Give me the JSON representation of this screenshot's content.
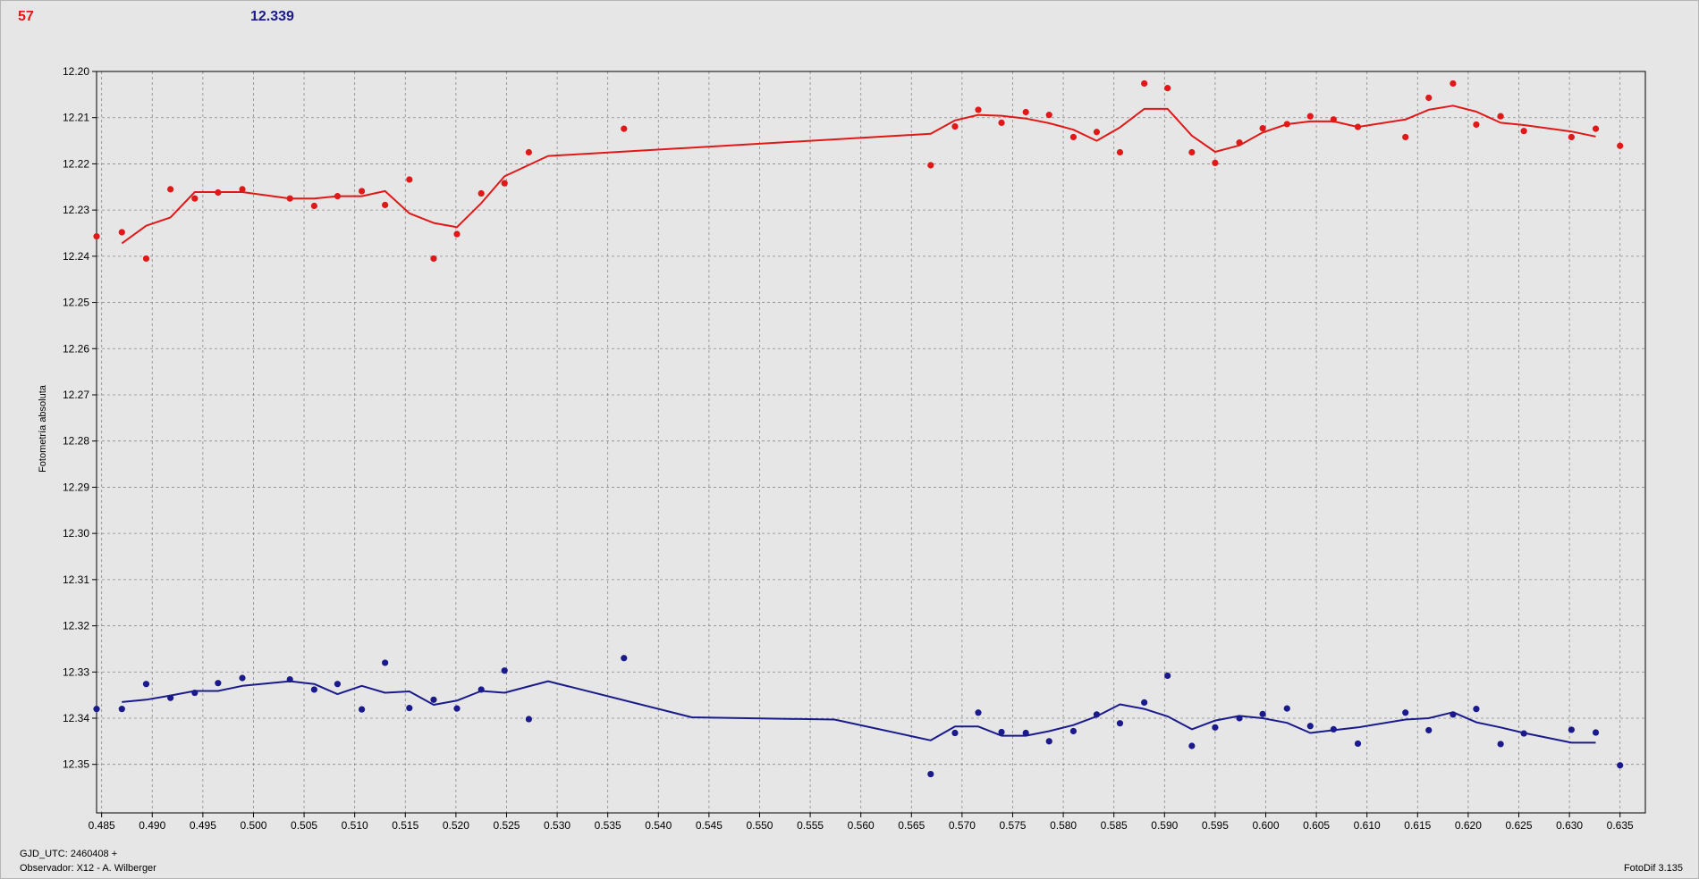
{
  "header": {
    "count": "57",
    "mean": "12.339"
  },
  "footer": {
    "gjd": "GJD_UTC: 2460408 +",
    "observer": "Observador: X12 - A. Wilberger",
    "version": "FotoDif 3.135"
  },
  "chart_data": {
    "type": "scatter",
    "xlabel": "",
    "ylabel": "Fotometría absoluta",
    "xlim": [
      0.4845,
      0.6375
    ],
    "ylim": [
      12.2,
      12.3605
    ],
    "y_inverted": true,
    "grid": true,
    "xticks": [
      "0.485",
      "0.490",
      "0.495",
      "0.500",
      "0.505",
      "0.510",
      "0.515",
      "0.520",
      "0.525",
      "0.530",
      "0.535",
      "0.540",
      "0.545",
      "0.550",
      "0.555",
      "0.560",
      "0.565",
      "0.570",
      "0.575",
      "0.580",
      "0.585",
      "0.590",
      "0.595",
      "0.600",
      "0.605",
      "0.610",
      "0.615",
      "0.620",
      "0.625",
      "0.630",
      "0.635"
    ],
    "yticks": [
      "12.20",
      "12.21",
      "12.22",
      "12.23",
      "12.24",
      "12.25",
      "12.26",
      "12.27",
      "12.28",
      "12.29",
      "12.30",
      "12.31",
      "12.32",
      "12.33",
      "12.34",
      "12.35"
    ],
    "series": [
      {
        "color": "#e01818",
        "x": [
          0.4845,
          0.487,
          0.4894,
          0.4918,
          0.4942,
          0.4965,
          0.4989,
          0.5036,
          0.506,
          0.5083,
          0.5107,
          0.513,
          0.5154,
          0.5178,
          0.5201,
          0.5225,
          0.5248,
          0.5272,
          0.5366,
          0.5669,
          0.5693,
          0.5716,
          0.5739,
          0.5763,
          0.5786,
          0.581,
          0.5833,
          0.5856,
          0.588,
          0.5903,
          0.5927,
          0.595,
          0.5974,
          0.5997,
          0.6021,
          0.6044,
          0.6067,
          0.6091,
          0.6138,
          0.6161,
          0.6185,
          0.6208,
          0.6232,
          0.6255,
          0.6302,
          0.6326,
          0.635
        ],
        "y": [
          12.2357,
          12.2348,
          12.2405,
          12.2255,
          12.2275,
          12.2262,
          12.2255,
          12.2275,
          12.2291,
          12.227,
          12.2259,
          12.2289,
          12.2234,
          12.2405,
          12.2352,
          12.2264,
          12.2242,
          12.2175,
          12.2124,
          12.2203,
          12.2119,
          12.2083,
          12.2111,
          12.2088,
          12.2094,
          12.2142,
          12.2131,
          12.2175,
          12.2026,
          12.2036,
          12.2175,
          12.2198,
          12.2154,
          12.2123,
          12.2114,
          12.2097,
          12.2104,
          12.212,
          12.2142,
          12.2057,
          12.2026,
          12.2115,
          12.2097,
          12.2129,
          12.2142,
          12.2124,
          12.2161
        ],
        "fit_x": [
          0.487,
          0.4894,
          0.4918,
          0.4942,
          0.4965,
          0.4989,
          0.5036,
          0.506,
          0.5083,
          0.5107,
          0.513,
          0.5154,
          0.5178,
          0.5201,
          0.5225,
          0.5248,
          0.5291,
          0.5669,
          0.5693,
          0.5716,
          0.5739,
          0.5763,
          0.5786,
          0.581,
          0.5833,
          0.5856,
          0.588,
          0.5903,
          0.5927,
          0.595,
          0.5974,
          0.5997,
          0.6021,
          0.6044,
          0.6067,
          0.6091,
          0.6138,
          0.6161,
          0.6185,
          0.6208,
          0.6232,
          0.6255,
          0.6302,
          0.6326
        ],
        "fit_y": [
          12.2372,
          12.2334,
          12.2316,
          12.2261,
          12.2261,
          12.2261,
          12.2275,
          12.2275,
          12.227,
          12.227,
          12.2259,
          12.2307,
          12.2328,
          12.2337,
          12.2285,
          12.2227,
          12.2183,
          12.2135,
          12.2106,
          12.2094,
          12.2096,
          12.2102,
          12.2112,
          12.2126,
          12.215,
          12.2121,
          12.2081,
          12.2081,
          12.2139,
          12.2174,
          12.216,
          12.2132,
          12.2114,
          12.2108,
          12.2108,
          12.212,
          12.2104,
          12.2083,
          12.2074,
          12.2087,
          12.2111,
          12.2116,
          12.213,
          12.2141
        ]
      },
      {
        "color": "#1a1a8c",
        "x": [
          0.4845,
          0.487,
          0.4894,
          0.4918,
          0.4942,
          0.4965,
          0.4989,
          0.5036,
          0.506,
          0.5083,
          0.5107,
          0.513,
          0.5154,
          0.5178,
          0.5201,
          0.5225,
          0.5248,
          0.5272,
          0.5366,
          0.5669,
          0.5693,
          0.5716,
          0.5739,
          0.5763,
          0.5786,
          0.581,
          0.5833,
          0.5856,
          0.588,
          0.5903,
          0.5927,
          0.595,
          0.5974,
          0.5997,
          0.6021,
          0.6044,
          0.6067,
          0.6091,
          0.6138,
          0.6161,
          0.6185,
          0.6208,
          0.6232,
          0.6255,
          0.6302,
          0.6326,
          0.635
        ],
        "y": [
          12.338,
          12.338,
          12.3326,
          12.3356,
          12.3345,
          12.3324,
          12.3313,
          12.3316,
          12.3338,
          12.3326,
          12.3381,
          12.328,
          12.3378,
          12.336,
          12.3379,
          12.3338,
          12.3297,
          12.3402,
          12.327,
          12.3521,
          12.3432,
          12.3388,
          12.343,
          12.3432,
          12.345,
          12.3428,
          12.3392,
          12.3411,
          12.3366,
          12.3308,
          12.346,
          12.342,
          12.34,
          12.3391,
          12.3379,
          12.3417,
          12.3424,
          12.3455,
          12.3388,
          12.3426,
          12.3392,
          12.338,
          12.3456,
          12.3433,
          12.3425,
          12.3431,
          12.3502
        ],
        "fit_x": [
          0.487,
          0.4894,
          0.4918,
          0.4942,
          0.4965,
          0.4989,
          0.5036,
          0.506,
          0.5083,
          0.5107,
          0.513,
          0.5154,
          0.5178,
          0.5201,
          0.5225,
          0.5248,
          0.5291,
          0.5433,
          0.5574,
          0.5669,
          0.5693,
          0.5716,
          0.5739,
          0.5763,
          0.5786,
          0.581,
          0.5833,
          0.5856,
          0.588,
          0.5903,
          0.5927,
          0.595,
          0.5974,
          0.5997,
          0.6021,
          0.6044,
          0.6067,
          0.6091,
          0.6138,
          0.6161,
          0.6185,
          0.6208,
          0.6232,
          0.6255,
          0.6302,
          0.6326
        ],
        "fit_y": [
          12.3365,
          12.336,
          12.3351,
          12.3341,
          12.3341,
          12.333,
          12.332,
          12.3326,
          12.3348,
          12.333,
          12.3345,
          12.3342,
          12.3371,
          12.3362,
          12.3341,
          12.3345,
          12.332,
          12.3398,
          12.3403,
          12.3448,
          12.3418,
          12.3418,
          12.3438,
          12.3438,
          12.3428,
          12.3415,
          12.3396,
          12.337,
          12.338,
          12.3396,
          12.3424,
          12.3405,
          12.3395,
          12.34,
          12.341,
          12.3432,
          12.3426,
          12.342,
          12.3403,
          12.34,
          12.3387,
          12.3409,
          12.342,
          12.3432,
          12.3453,
          12.3453
        ]
      }
    ]
  }
}
